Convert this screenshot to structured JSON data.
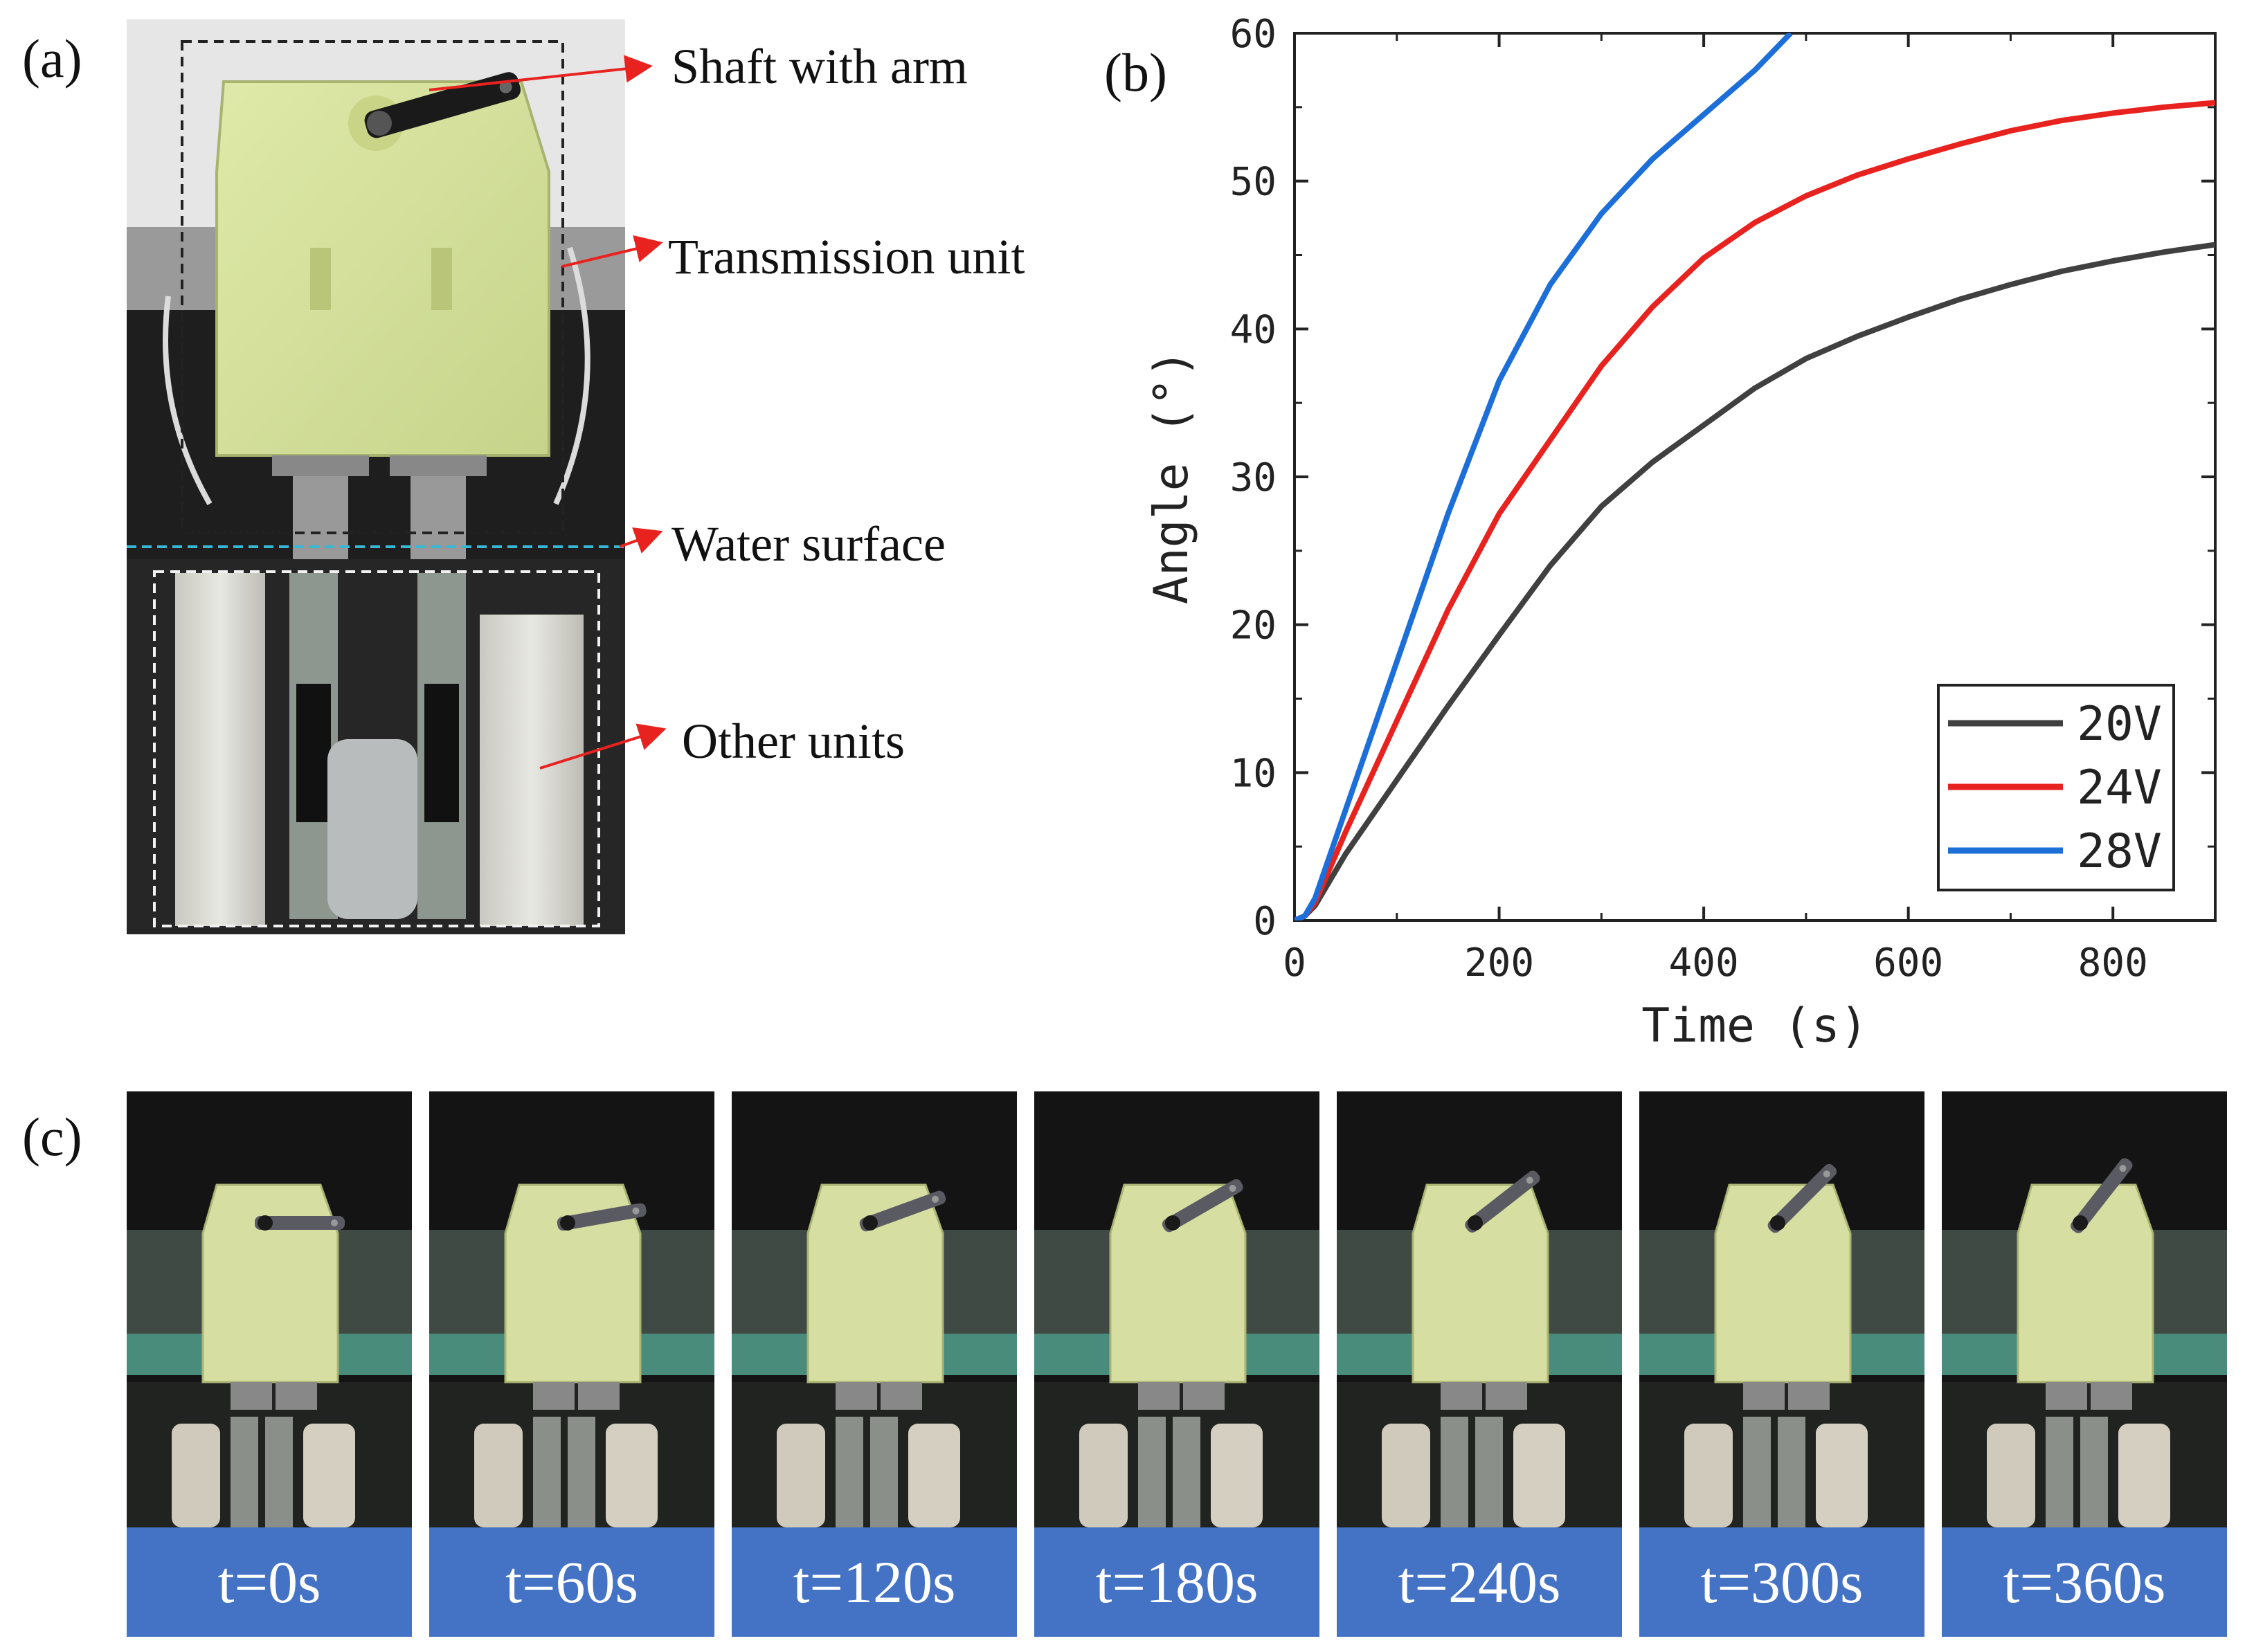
{
  "panels": {
    "a": "(a)",
    "b": "(b)",
    "c": "(c)"
  },
  "callouts": {
    "shaft": "Shaft with arm",
    "transmission": "Transmission unit",
    "water": "Water surface",
    "other": "Other units"
  },
  "timelapse": {
    "labels": [
      "t=0s",
      "t=60s",
      "t=120s",
      "t=180s",
      "t=240s",
      "t=300s",
      "t=360s"
    ],
    "arm_angles_deg": [
      0,
      10,
      20,
      30,
      38,
      45,
      52
    ],
    "label_bg": "#4472c4"
  },
  "colors": {
    "callout_arrow": "#e8231f",
    "water_line": "#39b8d6"
  },
  "chart_data": {
    "type": "line",
    "xlabel": "Time (s)",
    "ylabel": "Angle (°)",
    "xlim": [
      0,
      900
    ],
    "ylim": [
      0,
      60
    ],
    "xticks": [
      0,
      200,
      400,
      600,
      800
    ],
    "yticks": [
      0,
      10,
      20,
      30,
      40,
      50,
      60
    ],
    "grid": false,
    "legend_position": "bottom-right",
    "series": [
      {
        "name": "20V",
        "color": "#404040",
        "x": [
          0,
          10,
          20,
          50,
          100,
          150,
          200,
          250,
          300,
          350,
          400,
          450,
          500,
          550,
          600,
          650,
          700,
          750,
          800,
          850,
          900
        ],
        "y": [
          0,
          0.3,
          1,
          4.5,
          9.5,
          14.5,
          19.3,
          24,
          28,
          31,
          33.5,
          36,
          38,
          39.5,
          40.8,
          42,
          43,
          43.9,
          44.6,
          45.2,
          45.7
        ]
      },
      {
        "name": "24V",
        "color": "#e8231f",
        "x": [
          0,
          10,
          20,
          50,
          100,
          150,
          200,
          250,
          300,
          350,
          400,
          450,
          500,
          550,
          600,
          650,
          700,
          750,
          800,
          850,
          900
        ],
        "y": [
          0,
          0.3,
          1.2,
          6,
          13.5,
          21,
          27.5,
          32.5,
          37.5,
          41.5,
          44.8,
          47.2,
          49,
          50.4,
          51.5,
          52.5,
          53.4,
          54.1,
          54.6,
          55,
          55.3
        ]
      },
      {
        "name": "28V",
        "color": "#1c6fd8",
        "x": [
          0,
          10,
          20,
          50,
          100,
          150,
          200,
          250,
          300,
          350,
          400,
          450,
          485
        ],
        "y": [
          0,
          0.3,
          1.5,
          7.5,
          17.5,
          27.5,
          36.5,
          43,
          47.8,
          51.5,
          54.5,
          57.5,
          60
        ]
      }
    ]
  }
}
